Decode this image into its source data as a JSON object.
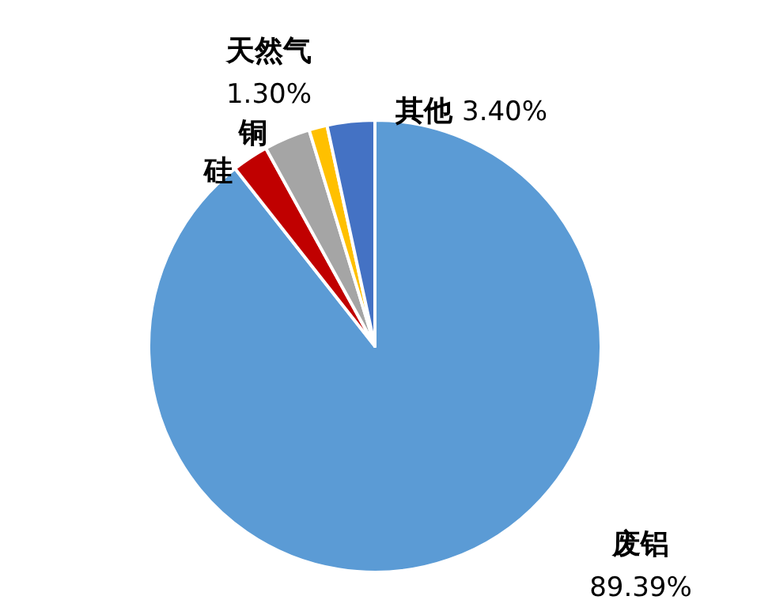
{
  "chart_data": {
    "type": "pie",
    "categories": [
      "废铝",
      "硅",
      "铜",
      "天然气",
      "其他"
    ],
    "values": [
      89.39,
      2.6,
      3.31,
      1.3,
      3.4
    ],
    "colors": [
      "#5b9bd5",
      "#c00000",
      "#a5a5a5",
      "#ffc000",
      "#4472c4"
    ],
    "value_labels": [
      "89.39%",
      null,
      null,
      "1.30%",
      "3.40%"
    ]
  }
}
